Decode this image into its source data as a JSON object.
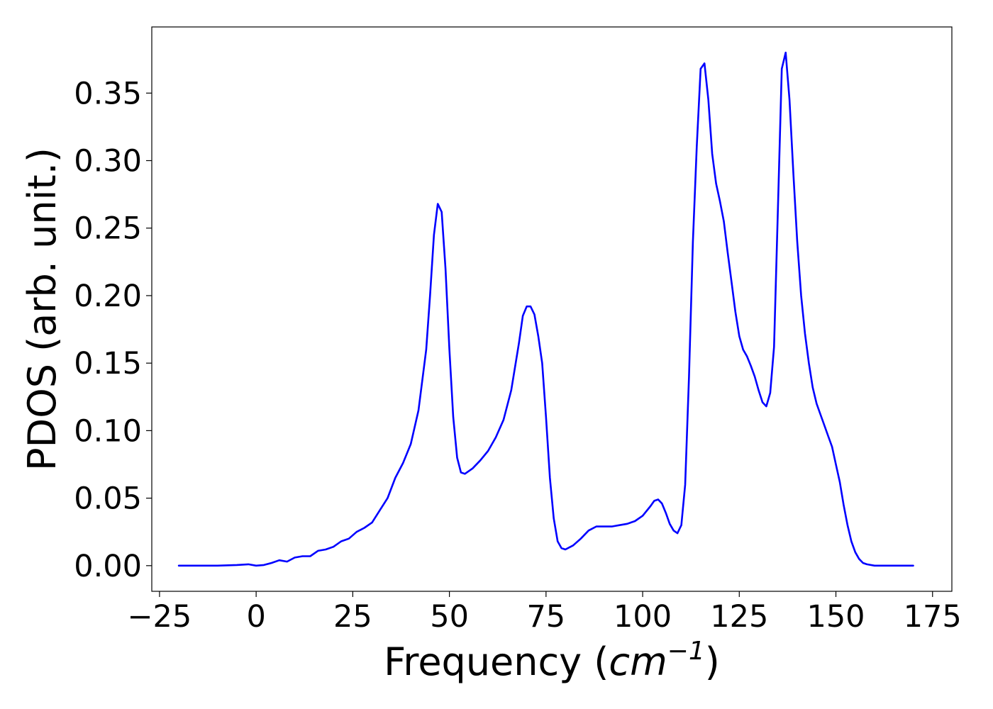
{
  "chart_data": {
    "type": "line",
    "title": "",
    "xlabel": "Frequency",
    "xlabel_unit_base": "cm",
    "xlabel_unit_exponent": "−1",
    "ylabel": "PDOS (arb. unit.)",
    "xlim": [
      -27,
      180
    ],
    "ylim": [
      -0.019,
      0.399
    ],
    "x_ticks": [
      -25,
      0,
      25,
      50,
      75,
      100,
      125,
      150,
      175
    ],
    "x_tick_labels": [
      "−25",
      "0",
      "25",
      "50",
      "75",
      "100",
      "125",
      "150",
      "175"
    ],
    "y_ticks": [
      0.0,
      0.05,
      0.1,
      0.15,
      0.2,
      0.25,
      0.3,
      0.35
    ],
    "y_tick_labels": [
      "0.00",
      "0.05",
      "0.10",
      "0.15",
      "0.20",
      "0.25",
      "0.30",
      "0.35"
    ],
    "grid": false,
    "legend": "none",
    "series": [
      {
        "color": "#0000ff",
        "x": [
          -20,
          -10,
          -5,
          -2,
          0,
          2,
          4,
          6,
          8,
          10,
          12,
          14,
          16,
          18,
          20,
          22,
          24,
          26,
          28,
          30,
          32,
          34,
          36,
          38,
          40,
          42,
          44,
          45,
          46,
          47,
          48,
          49,
          50,
          51,
          52,
          53,
          54,
          56,
          58,
          60,
          62,
          64,
          66,
          68,
          69,
          70,
          71,
          72,
          73,
          74,
          75,
          76,
          77,
          78,
          79,
          80,
          82,
          84,
          86,
          88,
          90,
          92,
          94,
          96,
          98,
          100,
          102,
          103,
          104,
          105,
          106,
          107,
          108,
          109,
          110,
          111,
          112,
          113,
          114,
          115,
          116,
          117,
          118,
          119,
          120,
          121,
          122,
          123,
          124,
          125,
          126,
          127,
          128,
          129,
          130,
          131,
          132,
          133,
          134,
          135,
          136,
          137,
          138,
          139,
          140,
          141,
          142,
          143,
          144,
          145,
          146,
          147,
          148,
          149,
          150,
          151,
          152,
          153,
          154,
          155,
          156,
          157,
          158,
          160,
          165,
          170
        ],
        "y": [
          0.0,
          0.0,
          0.0005,
          0.001,
          0.0,
          0.0005,
          0.002,
          0.004,
          0.003,
          0.006,
          0.007,
          0.007,
          0.011,
          0.012,
          0.014,
          0.018,
          0.02,
          0.025,
          0.028,
          0.032,
          0.041,
          0.05,
          0.065,
          0.076,
          0.09,
          0.115,
          0.16,
          0.2,
          0.245,
          0.268,
          0.262,
          0.22,
          0.16,
          0.11,
          0.08,
          0.069,
          0.068,
          0.072,
          0.078,
          0.085,
          0.095,
          0.108,
          0.13,
          0.165,
          0.185,
          0.192,
          0.192,
          0.186,
          0.17,
          0.15,
          0.11,
          0.065,
          0.035,
          0.018,
          0.013,
          0.012,
          0.015,
          0.02,
          0.026,
          0.029,
          0.029,
          0.029,
          0.03,
          0.031,
          0.033,
          0.037,
          0.044,
          0.048,
          0.049,
          0.046,
          0.039,
          0.031,
          0.026,
          0.024,
          0.03,
          0.06,
          0.14,
          0.24,
          0.31,
          0.368,
          0.372,
          0.345,
          0.305,
          0.283,
          0.27,
          0.255,
          0.232,
          0.21,
          0.188,
          0.17,
          0.16,
          0.155,
          0.148,
          0.14,
          0.13,
          0.121,
          0.118,
          0.128,
          0.162,
          0.265,
          0.368,
          0.38,
          0.345,
          0.29,
          0.24,
          0.2,
          0.172,
          0.15,
          0.132,
          0.12,
          0.112,
          0.104,
          0.096,
          0.088,
          0.075,
          0.062,
          0.045,
          0.03,
          0.018,
          0.01,
          0.005,
          0.002,
          0.001,
          0.0,
          0.0,
          0.0
        ]
      }
    ]
  }
}
